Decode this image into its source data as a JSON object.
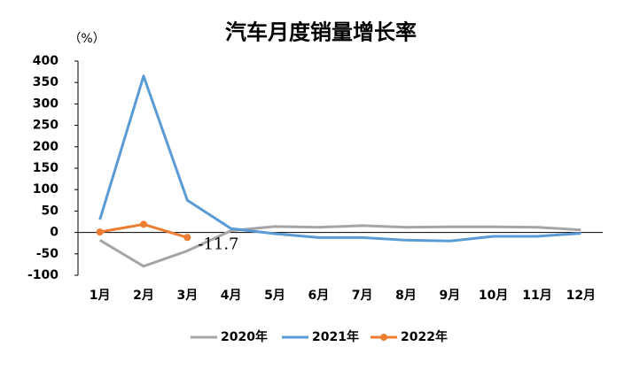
{
  "chart_data": {
    "type": "line",
    "title": "汽车月度销量增长率",
    "y_unit": "（%）",
    "categories": [
      "1月",
      "2月",
      "3月",
      "4月",
      "5月",
      "6月",
      "7月",
      "8月",
      "9月",
      "10月",
      "11月",
      "12月"
    ],
    "series": [
      {
        "name": "2020年",
        "color": "#a5a5a5",
        "values": [
          -18,
          -79,
          -43,
          4,
          14,
          12,
          16,
          12,
          13,
          13,
          12,
          6
        ]
      },
      {
        "name": "2021年",
        "color": "#5b9bd5",
        "values": [
          30,
          365,
          75,
          9,
          -3,
          -12,
          -12,
          -18,
          -20,
          -9,
          -9,
          -2
        ]
      },
      {
        "name": "2022年",
        "color": "#ed7d31",
        "marker": true,
        "values": [
          1,
          19,
          -11.7,
          null,
          null,
          null,
          null,
          null,
          null,
          null,
          null,
          null
        ],
        "label_index": 2,
        "label_color": "#e00000"
      }
    ],
    "ylim": [
      -100,
      400
    ],
    "yticks": [
      -100,
      -50,
      0,
      50,
      100,
      150,
      200,
      250,
      300,
      350,
      400
    ],
    "legend": "bottom"
  }
}
